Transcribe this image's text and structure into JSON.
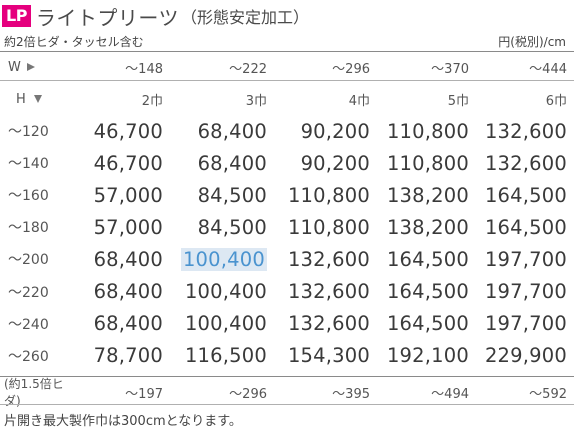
{
  "title": {
    "badge": "LP",
    "main": "ライトプリーツ",
    "sub": "（形態安定加工）"
  },
  "subtitle": {
    "left": "約2倍ヒダ・タッセル含む",
    "right": "円(税別)/cm"
  },
  "width_header": {
    "label": "W",
    "values": [
      "～148",
      "～222",
      "～296",
      "～370",
      "～444"
    ]
  },
  "height_header": {
    "label": "H",
    "values": [
      "2巾",
      "3巾",
      "4巾",
      "5巾",
      "6巾"
    ]
  },
  "rows": [
    {
      "label": "～120",
      "values": [
        "46,700",
        "68,400",
        "90,200",
        "110,800",
        "132,600"
      ]
    },
    {
      "label": "～140",
      "values": [
        "46,700",
        "68,400",
        "90,200",
        "110,800",
        "132,600"
      ]
    },
    {
      "label": "～160",
      "values": [
        "57,000",
        "84,500",
        "110,800",
        "138,200",
        "164,500"
      ]
    },
    {
      "label": "～180",
      "values": [
        "57,000",
        "84,500",
        "110,800",
        "138,200",
        "164,500"
      ]
    },
    {
      "label": "～200",
      "values": [
        "68,400",
        "100,400",
        "132,600",
        "164,500",
        "197,700"
      ]
    },
    {
      "label": "～220",
      "values": [
        "68,400",
        "100,400",
        "132,600",
        "164,500",
        "197,700"
      ]
    },
    {
      "label": "～240",
      "values": [
        "68,400",
        "100,400",
        "132,600",
        "164,500",
        "197,700"
      ]
    },
    {
      "label": "～260",
      "values": [
        "78,700",
        "116,500",
        "154,300",
        "192,100",
        "229,900"
      ]
    }
  ],
  "highlight": {
    "color_bg": "#dde8f3",
    "color_text": "#4a93cf"
  },
  "footer": {
    "label": "(約1.5倍ヒダ)",
    "values": [
      "～197",
      "～296",
      "～395",
      "～494",
      "～592"
    ]
  },
  "note": "片開き最大製作巾は300cmとなります。",
  "colors": {
    "badge": "#e5007e"
  }
}
